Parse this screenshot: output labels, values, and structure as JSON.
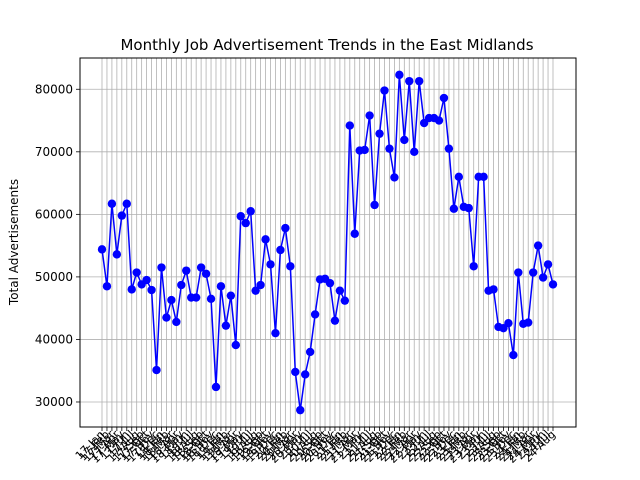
{
  "chart_data": {
    "type": "line",
    "title": "Monthly Job Advertisement Trends in the East Midlands",
    "xlabel": "",
    "ylabel": "Total Advertisements",
    "ylim": [
      26000,
      85000
    ],
    "yticks": [
      30000,
      40000,
      50000,
      60000,
      70000,
      80000
    ],
    "ytick_labels": [
      "30000",
      "40000",
      "50000",
      "60000",
      "70000",
      "80000"
    ],
    "grid": true,
    "line_color": "#0000ff",
    "marker_color": "#0000ff",
    "categories": [
      "17-Jan",
      "17-Feb",
      "17-Mar",
      "17-Apr",
      "17-May",
      "17-Jun",
      "17-Jul",
      "17-Aug",
      "17-Sep",
      "17-Oct",
      "17-Nov",
      "17-Dec",
      "18-Jan",
      "18-Feb",
      "18-Mar",
      "18-Apr",
      "18-May",
      "18-Jun",
      "18-Jul",
      "18-Aug",
      "18-Sep",
      "18-Oct",
      "18-Nov",
      "18-Dec",
      "19-Jan",
      "19-Feb",
      "19-Mar",
      "19-Apr",
      "19-May",
      "19-Jun",
      "19-Jul",
      "19-Aug",
      "19-Sep",
      "19-Oct",
      "19-Nov",
      "19-Dec",
      "20-Jan",
      "20-Feb",
      "20-Mar",
      "20-Apr",
      "20-May",
      "20-Jun",
      "20-Jul",
      "20-Aug",
      "20-Sep",
      "20-Oct",
      "20-Nov",
      "20-Dec",
      "21-Jan",
      "21-Feb",
      "21-Mar",
      "21-Apr",
      "21-May",
      "21-Jun",
      "21-Jul",
      "21-Aug",
      "21-Sep",
      "21-Oct",
      "21-Nov",
      "21-Dec",
      "22-Jan",
      "22-Feb",
      "22-Mar",
      "22-Apr",
      "22-May",
      "22-Jun",
      "22-Jul",
      "22-Aug",
      "22-Sep",
      "22-Oct",
      "22-Nov",
      "22-Dec",
      "23-Jan",
      "23-Feb",
      "23-Mar",
      "23-Apr",
      "23-May",
      "23-Jun",
      "23-Jul",
      "23-Aug",
      "23-Sep",
      "23-Oct",
      "23-Nov",
      "23-Dec",
      "24-Jan",
      "24-Feb",
      "24-Mar",
      "24-Apr",
      "24-May",
      "24-Jun",
      "24-Jul",
      "24-Aug"
    ],
    "values": [
      54400,
      48500,
      61700,
      53600,
      59800,
      61700,
      48000,
      50700,
      48800,
      49500,
      47900,
      35100,
      51500,
      43500,
      46300,
      42800,
      48700,
      51000,
      46700,
      46700,
      51500,
      50500,
      46500,
      32400,
      48500,
      42200,
      47000,
      39100,
      59700,
      58600,
      60500,
      47800,
      48700,
      56000,
      52000,
      41000,
      54300,
      57800,
      51700,
      34800,
      28700,
      34400,
      38000,
      44000,
      49600,
      49700,
      49000,
      43000,
      47800,
      46200,
      74200,
      56900,
      70200,
      70300,
      75800,
      61500,
      72900,
      79800,
      70500,
      65900,
      82300,
      71900,
      81300,
      70000,
      81300,
      74600,
      75400,
      75400,
      75000,
      78600,
      70500,
      60900,
      66000,
      61200,
      61000,
      51700,
      66000,
      66000,
      47800,
      48000,
      42000,
      41800,
      42600,
      37500,
      50700,
      42500,
      42700,
      50700,
      55000,
      49900,
      52000,
      48800
    ]
  }
}
